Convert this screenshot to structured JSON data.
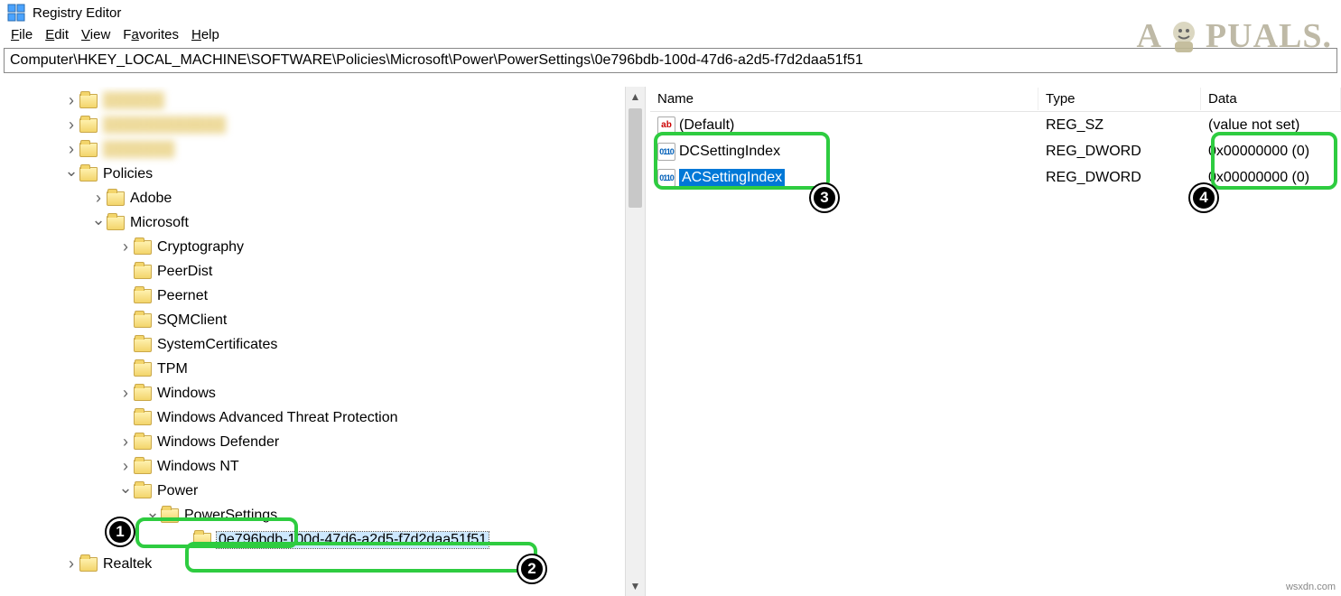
{
  "window": {
    "title": "Registry Editor"
  },
  "menu": {
    "file": "File",
    "edit": "Edit",
    "view": "View",
    "favorites": "Favorites",
    "help": "Help"
  },
  "address": "Computer\\HKEY_LOCAL_MACHINE\\SOFTWARE\\Policies\\Microsoft\\Power\\PowerSettings\\0e796bdb-100d-47d6-a2d5-f7d2daa51f51",
  "tree": {
    "blurred": [
      "██████",
      "████████████",
      "███████"
    ],
    "policies": "Policies",
    "adobe": "Adobe",
    "microsoft": "Microsoft",
    "ms_children": [
      "Cryptography",
      "PeerDist",
      "Peernet",
      "SQMClient",
      "SystemCertificates",
      "TPM",
      "Windows",
      "Windows Advanced Threat Protection",
      "Windows Defender",
      "Windows NT",
      "Power"
    ],
    "powersettings": "PowerSettings",
    "guid": "0e796bdb-100d-47d6-a2d5-f7d2daa51f51",
    "realtek": "Realtek"
  },
  "columns": {
    "name": "Name",
    "type": "Type",
    "data": "Data"
  },
  "values": [
    {
      "name": "(Default)",
      "type": "REG_SZ",
      "data": "(value not set)",
      "icon": "str",
      "selected": false
    },
    {
      "name": "DCSettingIndex",
      "type": "REG_DWORD",
      "data": "0x00000000 (0)",
      "icon": "bin",
      "selected": false
    },
    {
      "name": "ACSettingIndex",
      "type": "REG_DWORD",
      "data": "0x00000000 (0)",
      "icon": "bin",
      "selected": true
    }
  ],
  "annotations": {
    "highlight_color": "#2ecc40",
    "badges": [
      "1",
      "2",
      "3",
      "4"
    ]
  },
  "watermark": "A  PUALS.",
  "source": "wsxdn.com"
}
